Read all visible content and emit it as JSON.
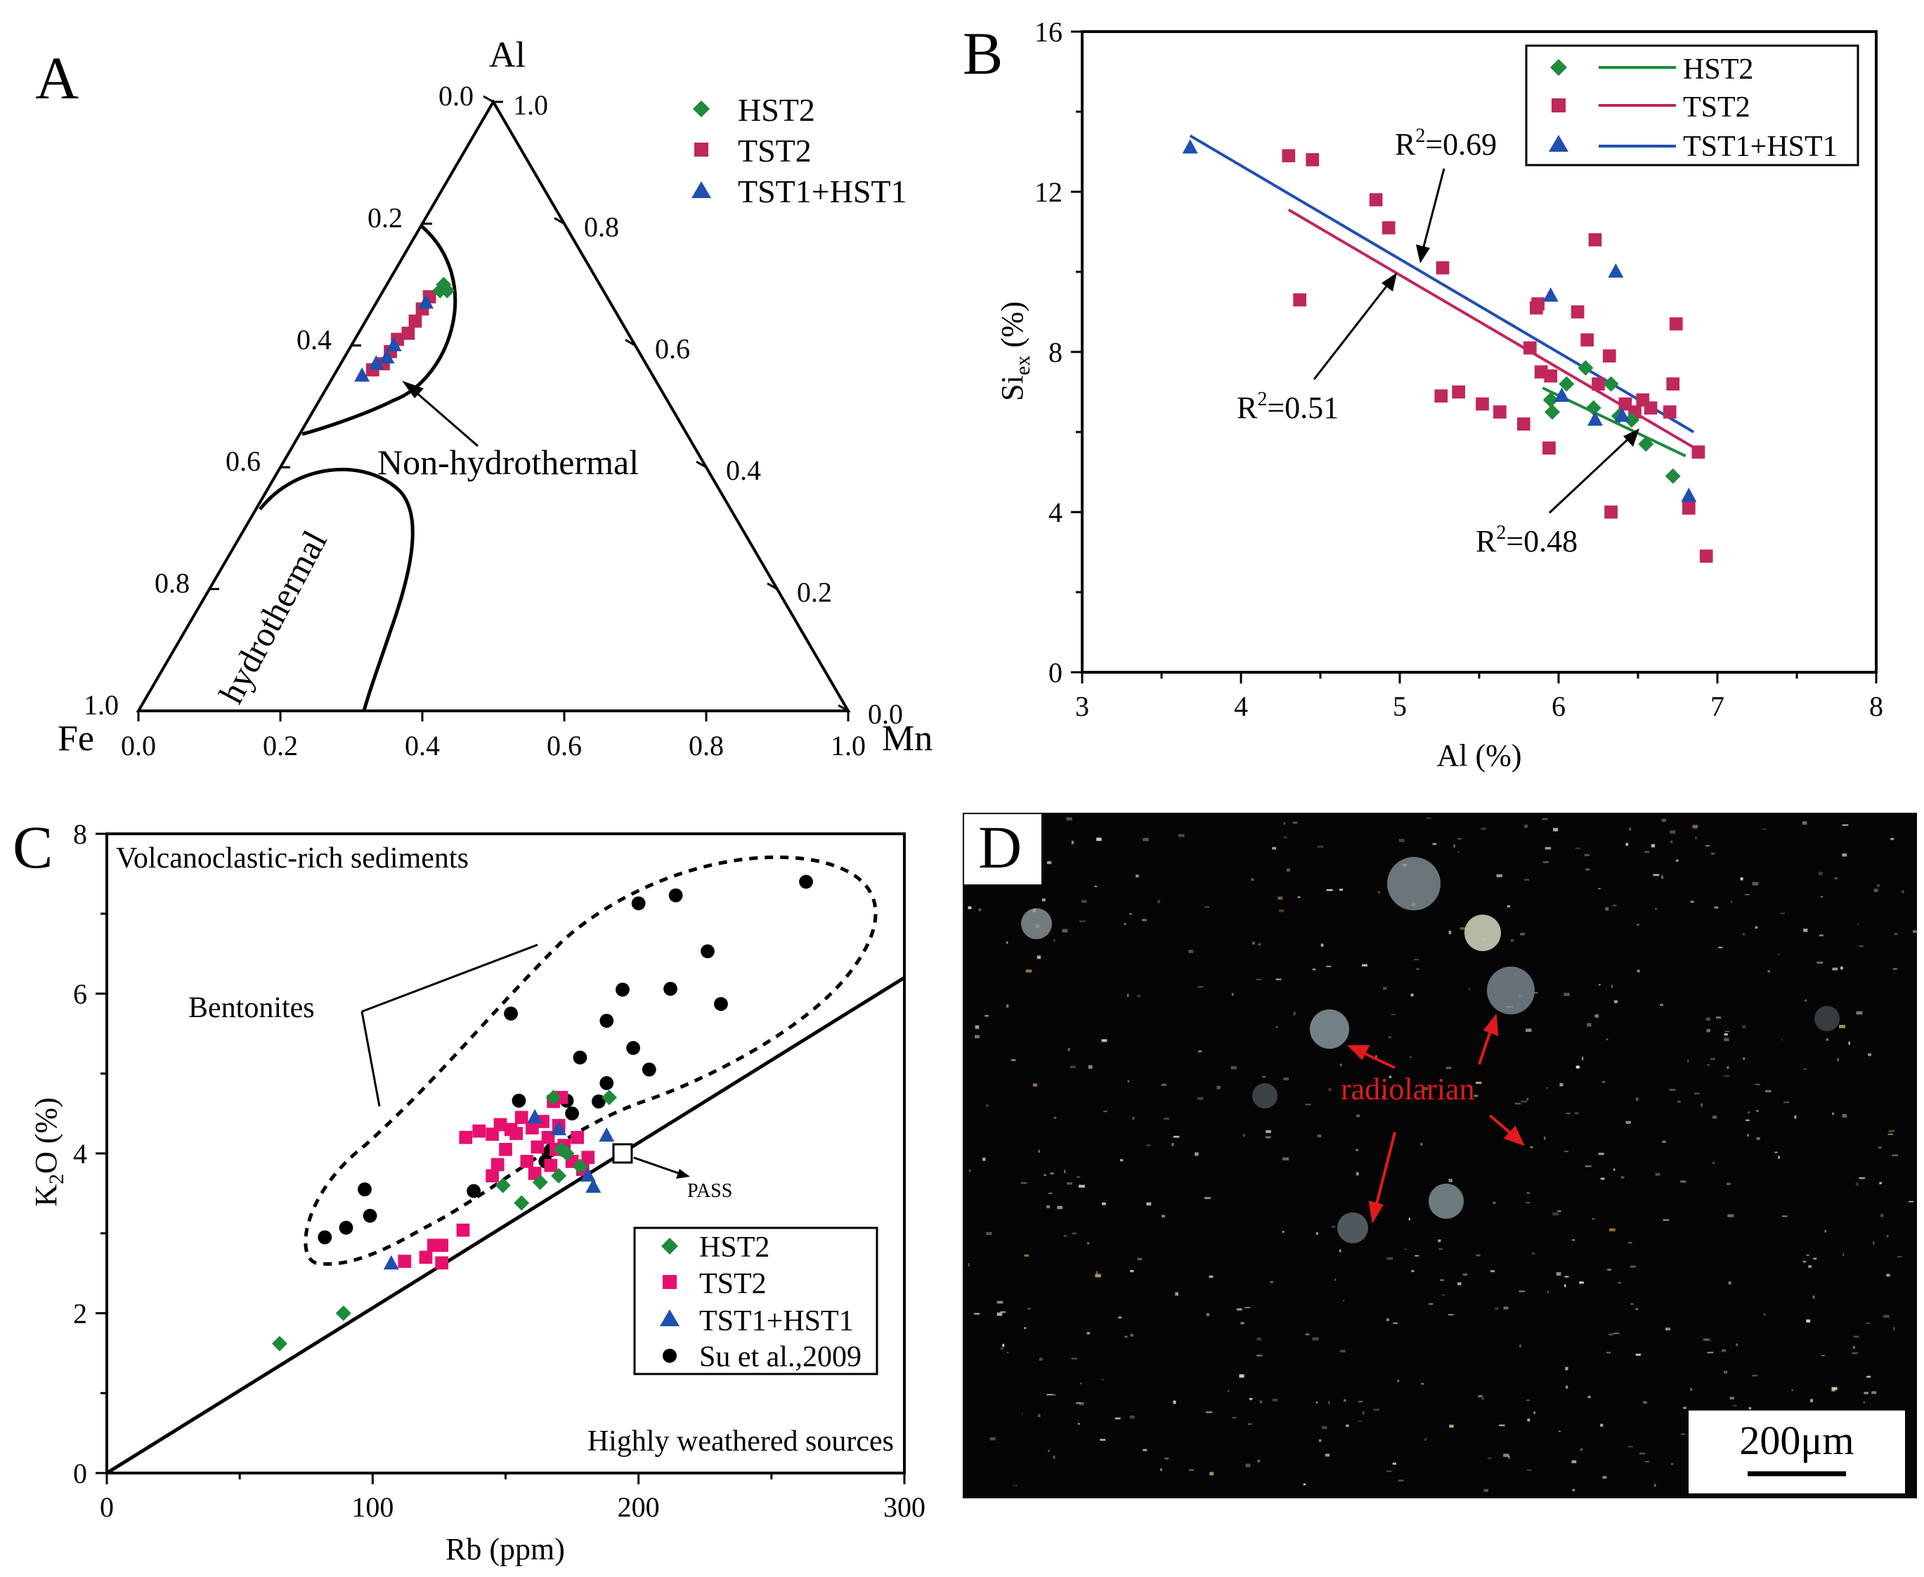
{
  "colors": {
    "hst2": "#1e8a3c",
    "tst2_b": "#c0275a",
    "tst2_c": "#e6106e",
    "tst1": "#1f4fb0",
    "su": "#000000",
    "line_hst2": "#1e8a3c",
    "line_tst2": "#c0275a",
    "line_tst1": "#1f4fb0",
    "annotation_red": "#e01b1b",
    "axis": "#000000"
  },
  "chart_data": [
    {
      "panel": "A",
      "type": "scatter",
      "subtype": "ternary",
      "vertices": [
        "Al",
        "Fe",
        "Mn"
      ],
      "ticks": {
        "left_edge": [
          "0.0",
          "0.2",
          "0.4",
          "0.6",
          "0.8",
          "1.0"
        ],
        "right_edge": [
          "1.0",
          "0.8",
          "0.6",
          "0.4",
          "0.2",
          "0.0"
        ],
        "bottom_edge": [
          "0.0",
          "0.2",
          "0.4",
          "0.6",
          "0.8",
          "1.0"
        ]
      },
      "legend": [
        "HST2",
        "TST2",
        "TST1+HST1"
      ],
      "region_labels": [
        "Non-hydrothermal",
        "hydrothermal"
      ],
      "series": [
        {
          "name": "HST2",
          "points": [
            {
              "fe": 0.22,
              "mn": 0.08
            },
            {
              "fe": 0.23,
              "mn": 0.08
            },
            {
              "fe": 0.22,
              "mn": 0.09
            }
          ]
        },
        {
          "name": "TST2",
          "points": [
            {
              "fe": 0.25,
              "mn": 0.07
            },
            {
              "fe": 0.27,
              "mn": 0.07
            },
            {
              "fe": 0.29,
              "mn": 0.07
            },
            {
              "fe": 0.31,
              "mn": 0.07
            },
            {
              "fe": 0.33,
              "mn": 0.06
            },
            {
              "fe": 0.35,
              "mn": 0.06
            },
            {
              "fe": 0.37,
              "mn": 0.06
            },
            {
              "fe": 0.39,
              "mn": 0.05
            }
          ]
        },
        {
          "name": "TST1+HST1",
          "points": [
            {
              "fe": 0.26,
              "mn": 0.07
            },
            {
              "fe": 0.34,
              "mn": 0.06
            },
            {
              "fe": 0.36,
              "mn": 0.06
            },
            {
              "fe": 0.38,
              "mn": 0.05
            },
            {
              "fe": 0.41,
              "mn": 0.04
            }
          ]
        }
      ]
    },
    {
      "panel": "B",
      "type": "scatter",
      "xlabel": "Al (%)",
      "ylabel_main": "Si",
      "ylabel_sub": "ex",
      "ylabel_unit": " (%)",
      "xlim": [
        3,
        8
      ],
      "ylim": [
        0,
        16
      ],
      "xticks": [
        3,
        4,
        5,
        6,
        7,
        8
      ],
      "yticks": [
        0,
        4,
        8,
        12,
        16
      ],
      "legend": [
        "HST2",
        "TST2",
        "TST1+HST1"
      ],
      "annotations": [
        {
          "label": "R",
          "sup": "2",
          "value": "=0.69"
        },
        {
          "label": "R",
          "sup": "2",
          "value": "=0.51"
        },
        {
          "label": "R",
          "sup": "2",
          "value": "=0.48"
        }
      ],
      "series": [
        {
          "name": "HST2",
          "points": [
            [
              5.95,
              6.8
            ],
            [
              5.96,
              6.5
            ],
            [
              6.05,
              7.2
            ],
            [
              6.17,
              7.6
            ],
            [
              6.22,
              6.6
            ],
            [
              6.33,
              7.2
            ],
            [
              6.38,
              6.4
            ],
            [
              6.46,
              6.3
            ],
            [
              6.55,
              5.7
            ],
            [
              6.72,
              4.9
            ]
          ],
          "fit": {
            "x": [
              5.9,
              6.8
            ],
            "y": [
              7.1,
              5.4
            ]
          }
        },
        {
          "name": "TST2",
          "points": [
            [
              4.3,
              12.9
            ],
            [
              4.45,
              12.8
            ],
            [
              4.37,
              9.3
            ],
            [
              4.85,
              11.8
            ],
            [
              4.93,
              11.1
            ],
            [
              5.27,
              10.1
            ],
            [
              5.26,
              6.9
            ],
            [
              5.37,
              7.0
            ],
            [
              5.52,
              6.7
            ],
            [
              5.63,
              6.5
            ],
            [
              5.78,
              6.2
            ],
            [
              5.82,
              8.1
            ],
            [
              5.86,
              9.1
            ],
            [
              5.87,
              9.2
            ],
            [
              5.89,
              7.5
            ],
            [
              5.95,
              7.4
            ],
            [
              5.94,
              5.6
            ],
            [
              6.12,
              9.0
            ],
            [
              6.18,
              8.3
            ],
            [
              6.23,
              10.8
            ],
            [
              6.25,
              7.2
            ],
            [
              6.32,
              7.9
            ],
            [
              6.33,
              4.0
            ],
            [
              6.42,
              6.7
            ],
            [
              6.48,
              6.5
            ],
            [
              6.53,
              6.8
            ],
            [
              6.58,
              6.6
            ],
            [
              6.7,
              6.5
            ],
            [
              6.72,
              7.2
            ],
            [
              6.74,
              8.7
            ],
            [
              6.82,
              4.1
            ],
            [
              6.88,
              5.5
            ],
            [
              6.93,
              2.9
            ]
          ],
          "fit": {
            "x": [
              4.3,
              6.9
            ],
            "y": [
              11.55,
              5.5
            ]
          }
        },
        {
          "name": "TST1+HST1",
          "points": [
            [
              3.68,
              13.1
            ],
            [
              5.95,
              9.4
            ],
            [
              6.23,
              6.3
            ],
            [
              6.36,
              10.0
            ],
            [
              6.82,
              4.4
            ],
            [
              6.02,
              6.9
            ],
            [
              6.4,
              6.4
            ]
          ],
          "fit": {
            "x": [
              3.68,
              6.85
            ],
            "y": [
              13.4,
              6.0
            ]
          }
        }
      ]
    },
    {
      "panel": "C",
      "type": "scatter",
      "xlabel": "Rb (ppm)",
      "ylabel_main": "K",
      "ylabel_sub": "2",
      "ylabel_unit": "O (%)",
      "xlim": [
        0,
        300
      ],
      "ylim": [
        0,
        8
      ],
      "xticks": [
        0,
        100,
        200,
        300
      ],
      "yticks": [
        0,
        2,
        4,
        6,
        8
      ],
      "region_labels": [
        "Volcanoclastic-rich sediments",
        "Highly weathered sources",
        "Bentonites"
      ],
      "reference_point": {
        "label": "PASS",
        "x": 194,
        "y": 4.0
      },
      "reference_line": {
        "x": [
          0,
          300
        ],
        "y": [
          0,
          6.2
        ]
      },
      "legend": [
        "HST2",
        "TST2",
        "TST1+HST1",
        "Su et al.,2009"
      ],
      "series": [
        {
          "name": "HST2",
          "points": [
            [
              65,
              1.62
            ],
            [
              89,
              2.0
            ],
            [
              149,
              3.6
            ],
            [
              156,
              3.38
            ],
            [
              163,
              3.64
            ],
            [
              170,
              3.72
            ],
            [
              168,
              4.7
            ],
            [
              171,
              4.05
            ],
            [
              178,
              3.84
            ],
            [
              189,
              4.7
            ],
            [
              173,
              4.0
            ]
          ]
        },
        {
          "name": "TST2",
          "points": [
            [
              112,
              2.65
            ],
            [
              120,
              2.7
            ],
            [
              123,
              2.85
            ],
            [
              126,
              2.85
            ],
            [
              126,
              2.63
            ],
            [
              134,
              3.04
            ],
            [
              135,
              4.2
            ],
            [
              140,
              4.28
            ],
            [
              145,
              4.24
            ],
            [
              145,
              3.72
            ],
            [
              147,
              3.86
            ],
            [
              148,
              4.36
            ],
            [
              150,
              4.05
            ],
            [
              152,
              4.3
            ],
            [
              154,
              4.25
            ],
            [
              156,
              4.45
            ],
            [
              158,
              3.9
            ],
            [
              160,
              4.32
            ],
            [
              161,
              3.75
            ],
            [
              162,
              4.08
            ],
            [
              164,
              4.4
            ],
            [
              166,
              4.2
            ],
            [
              167,
              3.85
            ],
            [
              168,
              4.65
            ],
            [
              169,
              4.05
            ],
            [
              170,
              4.35
            ],
            [
              171,
              4.7
            ],
            [
              172,
              4.1
            ],
            [
              175,
              3.9
            ],
            [
              177,
              4.2
            ],
            [
              179,
              3.8
            ],
            [
              181,
              3.95
            ]
          ]
        },
        {
          "name": "TST1+HST1",
          "points": [
            [
              107,
              2.62
            ],
            [
              161,
              4.45
            ],
            [
              170,
              4.3
            ],
            [
              181,
              3.72
            ],
            [
              183,
              3.58
            ],
            [
              188,
              4.22
            ]
          ]
        },
        {
          "name": "Su et al.,2009",
          "points": [
            [
              82,
              2.95
            ],
            [
              90,
              3.07
            ],
            [
              97,
              3.55
            ],
            [
              99,
              3.22
            ],
            [
              138,
              3.53
            ],
            [
              152,
              5.75
            ],
            [
              155,
              4.66
            ],
            [
              165,
              3.9
            ],
            [
              167,
              4.04
            ],
            [
              173,
              4.66
            ],
            [
              175,
              4.5
            ],
            [
              178,
              5.2
            ],
            [
              185,
              4.65
            ],
            [
              188,
              4.88
            ],
            [
              188,
              5.66
            ],
            [
              194,
              6.05
            ],
            [
              198,
              5.32
            ],
            [
              200,
              7.13
            ],
            [
              204,
              5.05
            ],
            [
              212,
              6.06
            ],
            [
              214,
              7.23
            ],
            [
              226,
              6.53
            ],
            [
              231,
              5.87
            ],
            [
              263,
              7.4
            ]
          ]
        }
      ]
    }
  ],
  "panels": {
    "a_label": "A",
    "b_label": "B",
    "c_label": "C",
    "d_label": "D"
  },
  "micrograph": {
    "annotation": "radiolarian",
    "scale_bar": "200μm"
  }
}
